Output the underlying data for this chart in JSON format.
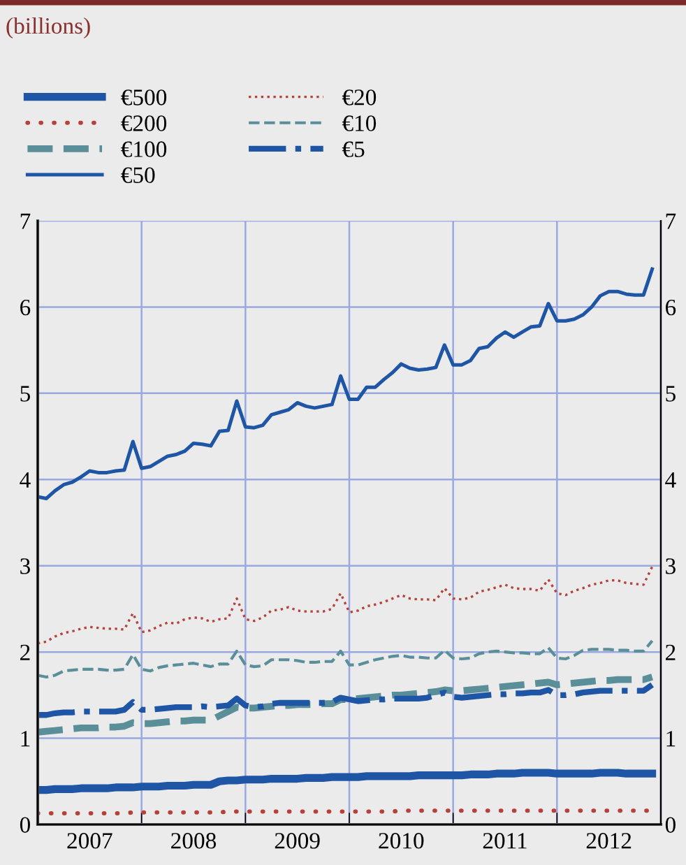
{
  "chart_data": {
    "type": "line",
    "title": "(billions)",
    "x": [
      "2007-01",
      "2007-02",
      "2007-03",
      "2007-04",
      "2007-05",
      "2007-06",
      "2007-07",
      "2007-08",
      "2007-09",
      "2007-10",
      "2007-11",
      "2007-12",
      "2008-01",
      "2008-02",
      "2008-03",
      "2008-04",
      "2008-05",
      "2008-06",
      "2008-07",
      "2008-08",
      "2008-09",
      "2008-10",
      "2008-11",
      "2008-12",
      "2009-01",
      "2009-02",
      "2009-03",
      "2009-04",
      "2009-05",
      "2009-06",
      "2009-07",
      "2009-08",
      "2009-09",
      "2009-10",
      "2009-11",
      "2009-12",
      "2010-01",
      "2010-02",
      "2010-03",
      "2010-04",
      "2010-05",
      "2010-06",
      "2010-07",
      "2010-08",
      "2010-09",
      "2010-10",
      "2010-11",
      "2010-12",
      "2011-01",
      "2011-02",
      "2011-03",
      "2011-04",
      "2011-05",
      "2011-06",
      "2011-07",
      "2011-08",
      "2011-09",
      "2011-10",
      "2011-11",
      "2011-12",
      "2012-01",
      "2012-02",
      "2012-03",
      "2012-04",
      "2012-05",
      "2012-06",
      "2012-07",
      "2012-08",
      "2012-09",
      "2012-10",
      "2012-11",
      "2012-12"
    ],
    "series": [
      {
        "name": "€500",
        "color": "#1f55a5",
        "line_style": "solid",
        "values": [
          0.4,
          0.4,
          0.41,
          0.41,
          0.41,
          0.42,
          0.42,
          0.42,
          0.42,
          0.43,
          0.43,
          0.43,
          0.44,
          0.44,
          0.44,
          0.45,
          0.45,
          0.45,
          0.46,
          0.46,
          0.46,
          0.5,
          0.51,
          0.51,
          0.52,
          0.52,
          0.52,
          0.53,
          0.53,
          0.53,
          0.53,
          0.54,
          0.54,
          0.54,
          0.55,
          0.55,
          0.55,
          0.55,
          0.56,
          0.56,
          0.56,
          0.56,
          0.56,
          0.56,
          0.57,
          0.57,
          0.57,
          0.57,
          0.57,
          0.57,
          0.58,
          0.58,
          0.58,
          0.59,
          0.59,
          0.59,
          0.6,
          0.6,
          0.6,
          0.6,
          0.59,
          0.59,
          0.59,
          0.59,
          0.59,
          0.6,
          0.6,
          0.6,
          0.59,
          0.59,
          0.59,
          0.59
        ]
      },
      {
        "name": "€20",
        "color": "#b5413a",
        "line_style": "dotted",
        "values": [
          2.1,
          2.12,
          2.18,
          2.22,
          2.24,
          2.27,
          2.29,
          2.28,
          2.27,
          2.27,
          2.26,
          2.45,
          2.23,
          2.25,
          2.3,
          2.34,
          2.33,
          2.38,
          2.4,
          2.39,
          2.35,
          2.38,
          2.39,
          2.62,
          2.38,
          2.36,
          2.4,
          2.48,
          2.49,
          2.52,
          2.48,
          2.47,
          2.47,
          2.47,
          2.5,
          2.68,
          2.46,
          2.48,
          2.53,
          2.55,
          2.58,
          2.62,
          2.66,
          2.62,
          2.61,
          2.61,
          2.6,
          2.74,
          2.62,
          2.61,
          2.63,
          2.7,
          2.72,
          2.75,
          2.78,
          2.74,
          2.73,
          2.73,
          2.71,
          2.84,
          2.68,
          2.66,
          2.71,
          2.74,
          2.78,
          2.8,
          2.83,
          2.83,
          2.8,
          2.79,
          2.78,
          2.99
        ]
      },
      {
        "name": "€200",
        "color": "#b5413a",
        "line_style": "dotted",
        "values": [
          0.13,
          0.13,
          0.13,
          0.13,
          0.13,
          0.13,
          0.13,
          0.13,
          0.13,
          0.13,
          0.13,
          0.14,
          0.14,
          0.14,
          0.14,
          0.14,
          0.14,
          0.14,
          0.14,
          0.14,
          0.14,
          0.14,
          0.15,
          0.15,
          0.15,
          0.15,
          0.15,
          0.15,
          0.15,
          0.15,
          0.15,
          0.15,
          0.15,
          0.15,
          0.15,
          0.15,
          0.15,
          0.15,
          0.15,
          0.15,
          0.15,
          0.15,
          0.16,
          0.16,
          0.16,
          0.16,
          0.16,
          0.16,
          0.16,
          0.16,
          0.16,
          0.16,
          0.16,
          0.16,
          0.16,
          0.16,
          0.16,
          0.16,
          0.16,
          0.16,
          0.16,
          0.16,
          0.16,
          0.16,
          0.16,
          0.16,
          0.16,
          0.16,
          0.16,
          0.16,
          0.16,
          0.16
        ]
      },
      {
        "name": "€10",
        "color": "#5a8f9a",
        "line_style": "dashed",
        "values": [
          1.73,
          1.71,
          1.73,
          1.78,
          1.79,
          1.8,
          1.8,
          1.8,
          1.79,
          1.79,
          1.8,
          1.97,
          1.8,
          1.78,
          1.82,
          1.84,
          1.85,
          1.86,
          1.87,
          1.85,
          1.83,
          1.86,
          1.86,
          2.01,
          1.85,
          1.83,
          1.84,
          1.91,
          1.91,
          1.91,
          1.9,
          1.88,
          1.88,
          1.89,
          1.89,
          2.01,
          1.85,
          1.85,
          1.88,
          1.91,
          1.93,
          1.95,
          1.96,
          1.94,
          1.94,
          1.93,
          1.93,
          2.02,
          1.93,
          1.92,
          1.93,
          1.98,
          2.0,
          2.01,
          2.0,
          1.99,
          1.99,
          1.98,
          1.98,
          2.05,
          1.93,
          1.92,
          1.96,
          2.02,
          2.03,
          2.03,
          2.03,
          2.02,
          2.02,
          2.01,
          2.01,
          2.13
        ]
      },
      {
        "name": "€100",
        "color": "#5a8f9a",
        "line_style": "dashed",
        "values": [
          1.07,
          1.08,
          1.09,
          1.1,
          1.11,
          1.12,
          1.12,
          1.12,
          1.13,
          1.13,
          1.14,
          1.18,
          1.17,
          1.17,
          1.18,
          1.19,
          1.2,
          1.2,
          1.21,
          1.21,
          1.21,
          1.26,
          1.31,
          1.36,
          1.35,
          1.35,
          1.36,
          1.37,
          1.38,
          1.38,
          1.39,
          1.39,
          1.39,
          1.4,
          1.4,
          1.45,
          1.45,
          1.46,
          1.47,
          1.48,
          1.49,
          1.5,
          1.5,
          1.51,
          1.52,
          1.53,
          1.54,
          1.56,
          1.55,
          1.55,
          1.56,
          1.57,
          1.58,
          1.59,
          1.6,
          1.61,
          1.62,
          1.63,
          1.64,
          1.65,
          1.62,
          1.63,
          1.64,
          1.65,
          1.66,
          1.67,
          1.67,
          1.68,
          1.68,
          1.68,
          1.68,
          1.71
        ]
      },
      {
        "name": "€5",
        "color": "#1f55a5",
        "line_style": "dashdot",
        "values": [
          1.27,
          1.27,
          1.29,
          1.3,
          1.3,
          1.31,
          1.31,
          1.31,
          1.31,
          1.31,
          1.33,
          1.42,
          1.33,
          1.33,
          1.34,
          1.35,
          1.36,
          1.36,
          1.36,
          1.37,
          1.36,
          1.37,
          1.38,
          1.46,
          1.38,
          1.36,
          1.37,
          1.4,
          1.41,
          1.41,
          1.41,
          1.41,
          1.41,
          1.41,
          1.42,
          1.47,
          1.45,
          1.43,
          1.44,
          1.45,
          1.45,
          1.46,
          1.46,
          1.46,
          1.46,
          1.47,
          1.5,
          1.53,
          1.48,
          1.47,
          1.48,
          1.49,
          1.5,
          1.51,
          1.51,
          1.52,
          1.52,
          1.53,
          1.53,
          1.56,
          1.5,
          1.5,
          1.51,
          1.53,
          1.54,
          1.55,
          1.55,
          1.55,
          1.55,
          1.55,
          1.55,
          1.62
        ]
      },
      {
        "name": "€50",
        "color": "#1f55a5",
        "line_style": "solid",
        "values": [
          3.8,
          3.78,
          3.87,
          3.94,
          3.97,
          4.03,
          4.1,
          4.08,
          4.08,
          4.1,
          4.11,
          4.44,
          4.13,
          4.15,
          4.21,
          4.27,
          4.29,
          4.33,
          4.42,
          4.41,
          4.39,
          4.56,
          4.57,
          4.91,
          4.61,
          4.6,
          4.63,
          4.75,
          4.78,
          4.81,
          4.89,
          4.85,
          4.83,
          4.85,
          4.87,
          5.2,
          4.93,
          4.93,
          5.07,
          5.07,
          5.16,
          5.24,
          5.34,
          5.29,
          5.27,
          5.28,
          5.3,
          5.56,
          5.33,
          5.33,
          5.38,
          5.52,
          5.54,
          5.64,
          5.71,
          5.65,
          5.71,
          5.77,
          5.78,
          6.04,
          5.84,
          5.84,
          5.86,
          5.91,
          6.0,
          6.13,
          6.18,
          6.18,
          6.15,
          6.14,
          6.14,
          6.44
        ]
      }
    ],
    "xlim": [
      "2007-01",
      "2013-01"
    ],
    "xticks": [
      {
        "value": "2007-01",
        "label": null
      },
      {
        "value": "2007-07",
        "label": "2007"
      },
      {
        "value": "2008-01",
        "label": null
      },
      {
        "value": "2008-07",
        "label": "2008"
      },
      {
        "value": "2009-01",
        "label": null
      },
      {
        "value": "2009-07",
        "label": "2009"
      },
      {
        "value": "2010-01",
        "label": null
      },
      {
        "value": "2010-07",
        "label": "2010"
      },
      {
        "value": "2011-01",
        "label": null
      },
      {
        "value": "2011-07",
        "label": "2011"
      },
      {
        "value": "2012-01",
        "label": null
      },
      {
        "value": "2012-07",
        "label": "2012"
      },
      {
        "value": "2013-01",
        "label": null
      }
    ],
    "ylim": [
      0,
      7
    ],
    "yticks": [
      0,
      1,
      2,
      3,
      4,
      5,
      6,
      7
    ],
    "y2lim": [
      0,
      7
    ],
    "y2ticks": [
      0,
      1,
      2,
      3,
      4,
      5,
      6,
      7
    ],
    "grid": true,
    "legend": "top left"
  }
}
